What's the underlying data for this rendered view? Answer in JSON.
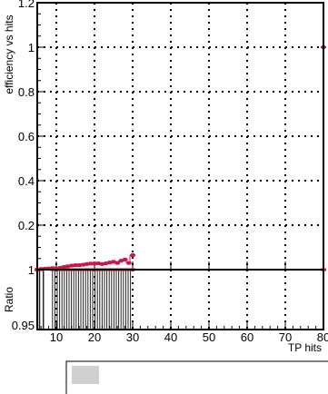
{
  "chart_data": [
    {
      "type": "scatter",
      "ylabel": "efficiency vs hits",
      "xlim": [
        5,
        80
      ],
      "ylim": [
        0,
        1.2
      ],
      "yticks": [
        0.2,
        0.4,
        0.6,
        0.8,
        1,
        1.2
      ],
      "yticklabels": [
        "0.2",
        "0.4",
        "0.6",
        "0.8",
        "1",
        "1.2"
      ],
      "grid": true,
      "series": [
        {
          "color": "#c8174b",
          "x": [
            5,
            6,
            7,
            8,
            9,
            10,
            11,
            12,
            13,
            14,
            15,
            16,
            17,
            18,
            19,
            20,
            21,
            22,
            23,
            24,
            25,
            26,
            27,
            28,
            29,
            30,
            80
          ],
          "y": [
            0.0,
            0.003,
            0.004,
            0.005,
            0.007,
            0.005,
            0.008,
            0.012,
            0.015,
            0.018,
            0.02,
            0.02,
            0.022,
            0.025,
            0.027,
            0.027,
            0.028,
            0.025,
            0.028,
            0.032,
            0.035,
            0.03,
            0.04,
            0.045,
            0.03,
            0.065,
            1.0
          ]
        }
      ]
    },
    {
      "type": "scatter",
      "ylabel": "Ratio",
      "xlabel": "TP hits",
      "xlim": [
        5,
        80
      ],
      "ylim": [
        0.95,
        1.0
      ],
      "xticks": [
        10,
        20,
        30,
        40,
        50,
        60,
        70,
        80
      ],
      "xticklabels": [
        "10",
        "20",
        "30",
        "40",
        "50",
        "60",
        "70",
        "80"
      ],
      "yticks": [
        0.95,
        1
      ],
      "yticklabels": [
        "0.95",
        "1"
      ],
      "grid": true,
      "hatch_range": [
        9,
        30
      ],
      "series": [
        {
          "color": "#e8151f",
          "x": [
            5,
            6,
            9,
            10,
            11,
            12,
            13,
            14,
            15,
            16,
            17,
            18,
            19,
            20,
            21,
            22,
            23,
            24,
            25,
            26,
            27,
            28,
            29,
            30,
            80
          ],
          "y": [
            1,
            1,
            1,
            1,
            1,
            1,
            1,
            1,
            1,
            1,
            1,
            1,
            1,
            1,
            1,
            1,
            1,
            1,
            1,
            1,
            1,
            1,
            1,
            1,
            1
          ]
        }
      ]
    }
  ]
}
